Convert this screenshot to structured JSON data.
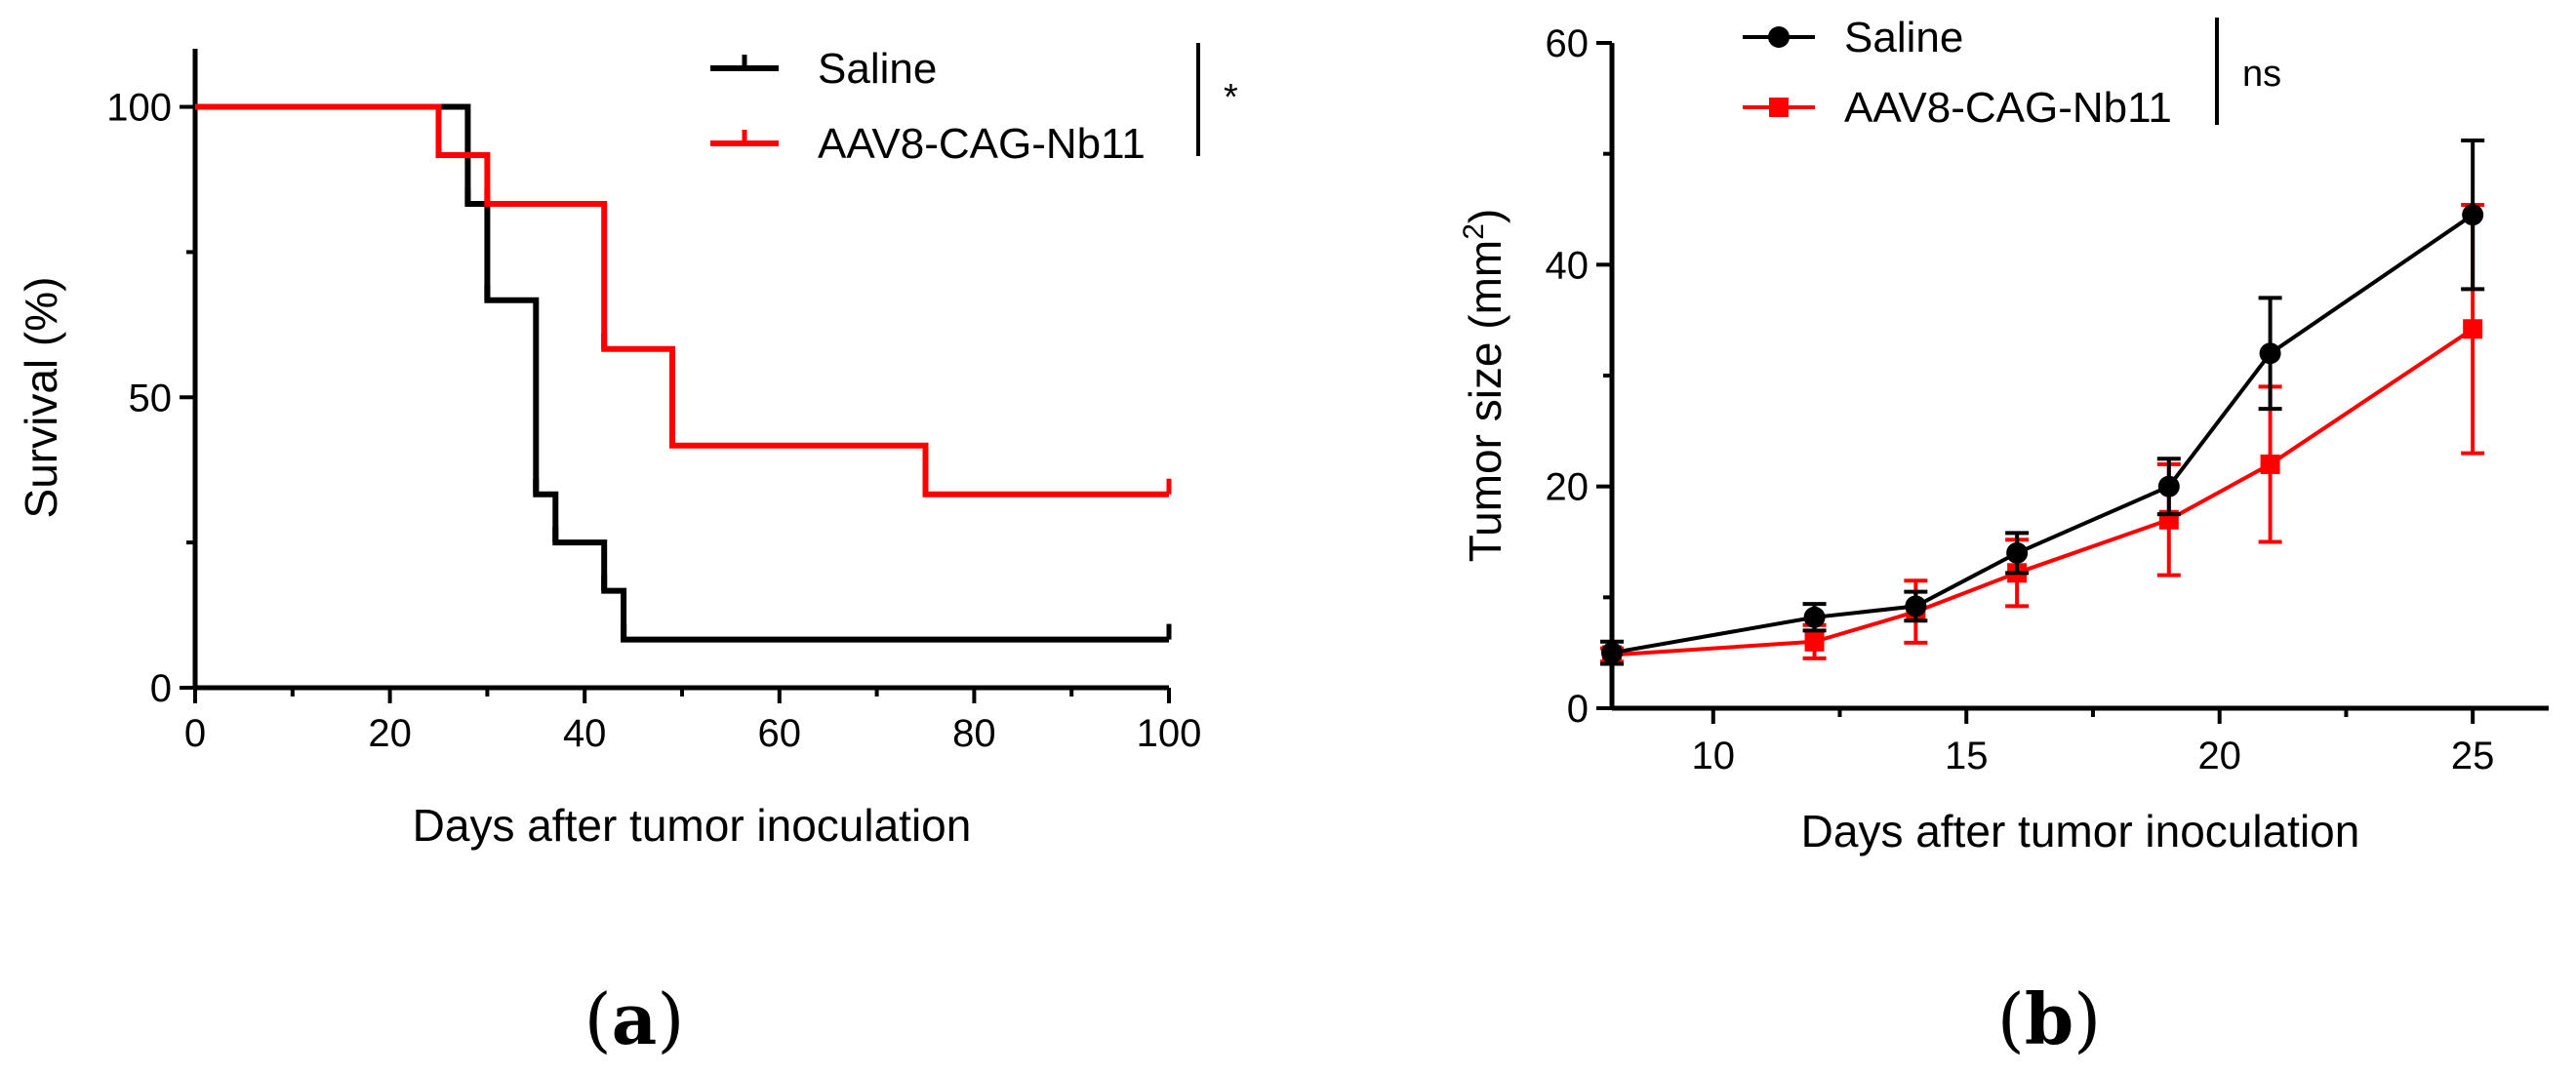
{
  "chart_data": [
    {
      "type": "line",
      "subtype": "kaplan-meier",
      "panel_label": "a",
      "xlabel": "Days after tumor inoculation",
      "ylabel": "Survival (%)",
      "xlim": [
        0,
        100
      ],
      "ylim": [
        0,
        110
      ],
      "xticks": [
        0,
        20,
        40,
        60,
        80,
        100
      ],
      "yticks": [
        0,
        50,
        100
      ],
      "significance": "*",
      "series": [
        {
          "name": "Saline",
          "color": "#000000",
          "steps": [
            [
              0,
              100
            ],
            [
              28,
              100
            ],
            [
              28,
              83.3
            ],
            [
              30,
              83.3
            ],
            [
              30,
              66.7
            ],
            [
              35,
              66.7
            ],
            [
              35,
              33.3
            ],
            [
              37,
              33.3
            ],
            [
              37,
              25
            ],
            [
              42,
              25
            ],
            [
              42,
              16.7
            ],
            [
              44,
              16.7
            ],
            [
              44,
              8.3
            ],
            [
              100,
              8.3
            ]
          ],
          "censored": [
            [
              100,
              8.3
            ]
          ]
        },
        {
          "name": "AAV8-CAG-Nb11",
          "color": "#ff0000",
          "steps": [
            [
              0,
              100
            ],
            [
              25,
              100
            ],
            [
              25,
              91.7
            ],
            [
              30,
              91.7
            ],
            [
              30,
              83.3
            ],
            [
              42,
              83.3
            ],
            [
              42,
              58.3
            ],
            [
              49,
              58.3
            ],
            [
              49,
              41.7
            ],
            [
              75,
              41.7
            ],
            [
              75,
              33.3
            ],
            [
              100,
              33.3
            ]
          ],
          "censored": [
            [
              100,
              33.3
            ]
          ]
        }
      ]
    },
    {
      "type": "line",
      "panel_label": "b",
      "xlabel": "Days after tumor inoculation",
      "ylabel": "Tumor size (mm",
      "ylabel_sup": "2",
      "ylabel_end": ")",
      "xlim": [
        8,
        26.5
      ],
      "ylim": [
        0,
        60
      ],
      "xticks": [
        10,
        15,
        20,
        25
      ],
      "yticks": [
        0,
        20,
        40,
        60
      ],
      "significance": "ns",
      "series": [
        {
          "name": "Saline",
          "color": "#000000",
          "marker": "circle",
          "x": [
            8,
            12,
            14,
            16,
            19,
            21,
            25
          ],
          "y": [
            5,
            8.2,
            9.2,
            14,
            20,
            32,
            44.5
          ],
          "err": [
            1,
            1.2,
            1.3,
            1.8,
            2.5,
            5,
            6.7
          ]
        },
        {
          "name": "AAV8-CAG-Nb11",
          "color": "#ff0000",
          "marker": "square",
          "x": [
            8,
            12,
            14,
            16,
            19,
            21,
            25
          ],
          "y": [
            4.8,
            6,
            8.7,
            12.2,
            17,
            22,
            34.2
          ],
          "err": [
            0.6,
            1.5,
            2.8,
            3,
            5,
            7,
            11.2
          ]
        }
      ]
    }
  ]
}
